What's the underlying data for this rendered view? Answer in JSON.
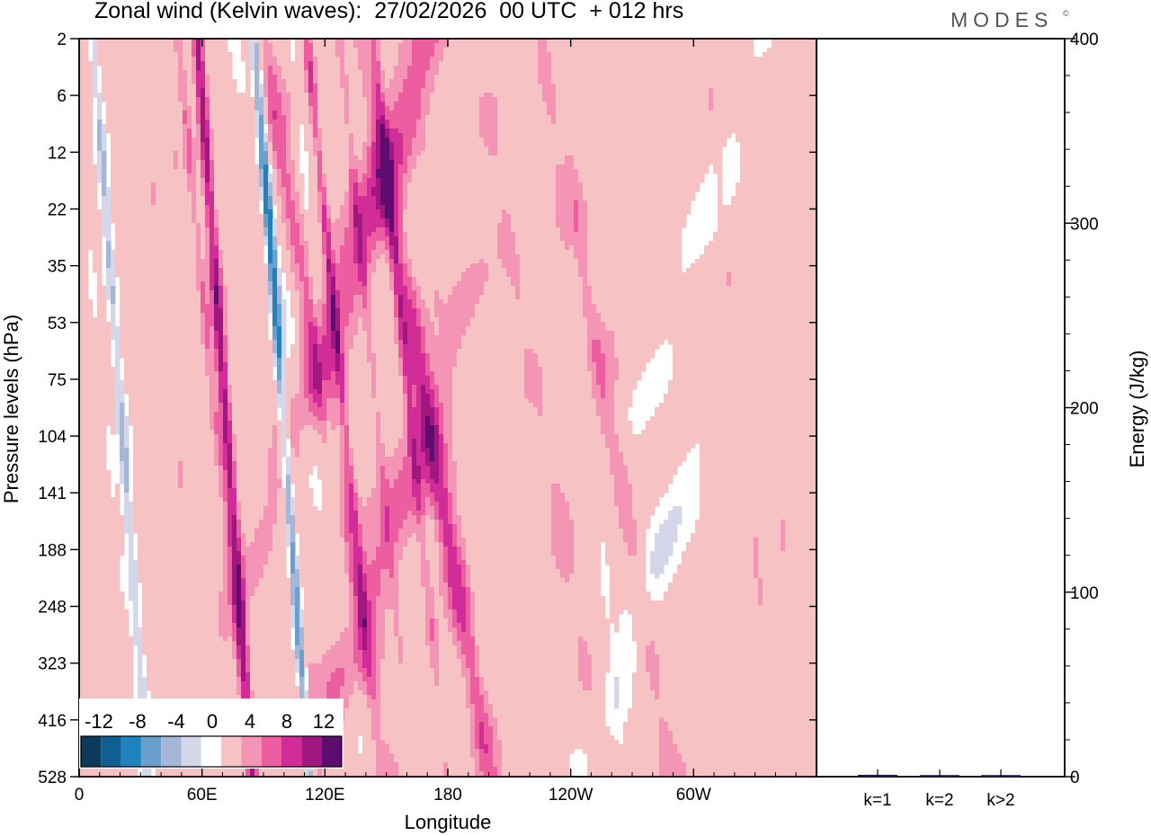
{
  "title": "Zonal wind (Kelvin waves):  27/02/2026  00 UTC  + 012 hrs",
  "brand": "MODES",
  "brand_mark": "©",
  "chart_data": [
    {
      "type": "heatmap",
      "title": "Zonal wind (Kelvin waves):  27/02/2026  00 UTC  + 012 hrs",
      "xlabel": "Longitude",
      "ylabel": "Pressure levels (hPa)",
      "x_ticks": [
        "0",
        "60E",
        "120E",
        "180",
        "120W",
        "60W"
      ],
      "x_tick_values": [
        0,
        60,
        120,
        180,
        240,
        300
      ],
      "xlim": [
        0,
        360
      ],
      "y_ticks": [
        "2",
        "6",
        "12",
        "22",
        "35",
        "53",
        "75",
        "104",
        "141",
        "188",
        "248",
        "323",
        "416",
        "528"
      ],
      "levels": [
        -14,
        -12,
        -10,
        -8,
        -6,
        -4,
        -2,
        2,
        4,
        6,
        8,
        10,
        12,
        14
      ],
      "legend_labels": [
        "-12",
        "-8",
        "-4",
        "0",
        "4",
        "8",
        "12"
      ],
      "legend_colors": [
        "#0b3a5a",
        "#105f91",
        "#1e82bd",
        "#6aa0cb",
        "#a4b7d8",
        "#d4d7ea",
        "#ffffff",
        "#f7c2c3",
        "#f495b5",
        "#ec5ea0",
        "#d12c97",
        "#a0177f",
        "#5e0c6f"
      ],
      "features": [
        {
          "lon": 100,
          "level": 6.9,
          "value": -11
        },
        {
          "lon": 70,
          "level": 5.9,
          "value": 9
        },
        {
          "lon": 20,
          "level": 6.4,
          "value": -6
        },
        {
          "lon": 175,
          "level": 7.7,
          "value": 7
        },
        {
          "lon": 150,
          "level": 9.1,
          "value": 5
        },
        {
          "lon": 255,
          "level": 12.7,
          "value": 3
        },
        {
          "lon": 278,
          "level": 9.7,
          "value": -5
        },
        {
          "lon": 262,
          "level": 7.4,
          "value": 4
        },
        {
          "lon": 300,
          "level": 3.5,
          "value": -2
        },
        {
          "lon": 90,
          "level": 2.6,
          "value": -3
        },
        {
          "lon": 145,
          "level": 2.9,
          "value": 6
        },
        {
          "lon": 90,
          "level": 0.3,
          "value": 5
        }
      ]
    },
    {
      "type": "bar",
      "categories": [
        "k=1",
        "k=2",
        "k>2"
      ],
      "values": [
        1.0,
        0.7,
        0.8
      ],
      "ylabel": "Energy (J/kg)",
      "ylim": [
        0,
        400
      ],
      "y_ticks": [
        "0",
        "100",
        "200",
        "300",
        "400"
      ]
    }
  ]
}
